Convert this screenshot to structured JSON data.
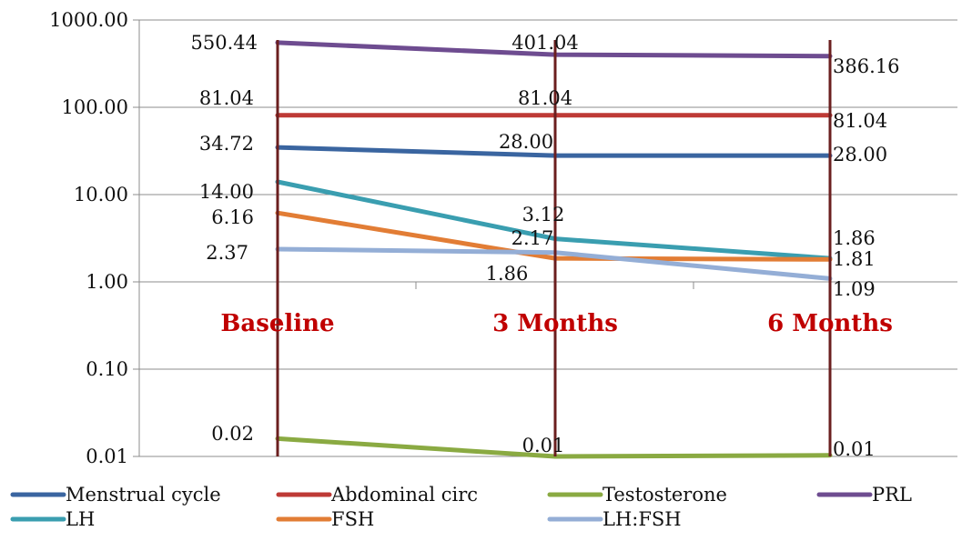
{
  "chart_data": {
    "type": "line",
    "y_scale": "log",
    "ylim": [
      0.01,
      1000
    ],
    "y_ticks": [
      "1000.00",
      "100.00",
      "10.00",
      "1.00",
      "0.10",
      "0.01"
    ],
    "categories": [
      "Baseline",
      "3 Months",
      "6 Months"
    ],
    "grid": true,
    "legend_position": "bottom",
    "series": [
      {
        "name": "Menstrual cycle",
        "color": "#3a65a0",
        "values": [
          34.72,
          28.0,
          28.0
        ],
        "labels": [
          "34.72",
          "28.00",
          "28.00"
        ]
      },
      {
        "name": "Abdominal circ",
        "color": "#be3a36",
        "values": [
          81.04,
          81.04,
          81.04
        ],
        "labels": [
          "81.04",
          "81.04",
          "81.04"
        ]
      },
      {
        "name": "Testosterone",
        "color": "#8aaa42",
        "values": [
          0.016,
          0.01,
          0.0103
        ],
        "labels": [
          "0.02",
          "0.01",
          "0.01"
        ]
      },
      {
        "name": "PRL",
        "color": "#6e4c90",
        "values": [
          550.44,
          401.04,
          386.16
        ],
        "labels": [
          "550.44",
          "401.04",
          "386.16"
        ]
      },
      {
        "name": "LH",
        "color": "#3a9eb0",
        "values": [
          14.0,
          3.12,
          1.86
        ],
        "labels": [
          "14.00",
          "3.12",
          "1.86"
        ]
      },
      {
        "name": "FSH",
        "color": "#e27d35",
        "values": [
          6.16,
          1.86,
          1.81
        ],
        "labels": [
          "6.16",
          "1.86",
          "1.81"
        ]
      },
      {
        "name": "LH:FSH",
        "color": "#94aed6",
        "values": [
          2.37,
          2.17,
          1.09
        ],
        "labels": [
          "2.37",
          "2.17",
          "1.09"
        ]
      }
    ],
    "vertical_line_color": "#6b1f1f",
    "category_label_color": "#c00000"
  }
}
